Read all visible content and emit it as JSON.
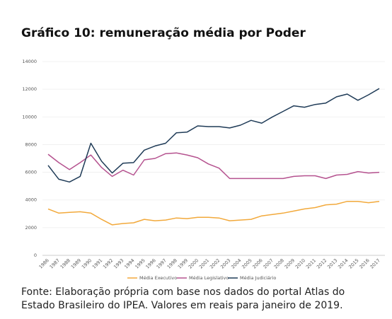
{
  "chart_data": {
    "type": "line",
    "title": "Gráfico 10: remuneração média por Poder",
    "footnote": [
      "Fonte: Elaboração própria com base nos dados do portal Atlas do",
      "Estado Brasileiro do IPEA. Valores em reais para janeiro de 2019."
    ],
    "categories": [
      "1986",
      "1987",
      "1988",
      "1989",
      "1990",
      "1991",
      "1992",
      "1993",
      "1994",
      "1995",
      "1996",
      "1997",
      "1998",
      "1999",
      "2000",
      "2001",
      "2002",
      "2003",
      "2004",
      "2005",
      "2006",
      "2007",
      "2008",
      "2009",
      "2010",
      "2011",
      "2012",
      "2013",
      "2014",
      "2015",
      "2016",
      "2017"
    ],
    "series": [
      {
        "name": "Média Executivo",
        "color": "#f2a93b",
        "values": [
          3350,
          3050,
          3100,
          3150,
          3050,
          2600,
          2200,
          2300,
          2350,
          2600,
          2500,
          2550,
          2700,
          2650,
          2750,
          2750,
          2700,
          2500,
          2550,
          2600,
          2850,
          2950,
          3050,
          3200,
          3350,
          3450,
          3650,
          3700,
          3900,
          3900,
          3800,
          3900
        ]
      },
      {
        "name": "Média Legislativo",
        "color": "#b5528f",
        "values": [
          7300,
          6700,
          6200,
          6700,
          7250,
          6350,
          5700,
          6150,
          5800,
          6900,
          7000,
          7350,
          7400,
          7250,
          7050,
          6600,
          6300,
          5550,
          5550,
          5550,
          5550,
          5550,
          5550,
          5700,
          5750,
          5750,
          5550,
          5800,
          5850,
          6050,
          5950,
          6000
        ]
      },
      {
        "name": "Média Judiciário",
        "color": "#1f3b57",
        "values": [
          6500,
          5500,
          5300,
          5700,
          8100,
          6800,
          5950,
          6650,
          6700,
          7600,
          7900,
          8100,
          8850,
          8900,
          9350,
          9300,
          9300,
          9200,
          9400,
          9750,
          9550,
          10000,
          10400,
          10800,
          10700,
          10900,
          11000,
          11450,
          11650,
          11200,
          11600,
          12050
        ]
      }
    ],
    "ylim": [
      0,
      14000
    ],
    "yticks": [
      0,
      2000,
      4000,
      6000,
      8000,
      10000,
      12000,
      14000
    ],
    "grid": true,
    "legend": "bottom"
  }
}
